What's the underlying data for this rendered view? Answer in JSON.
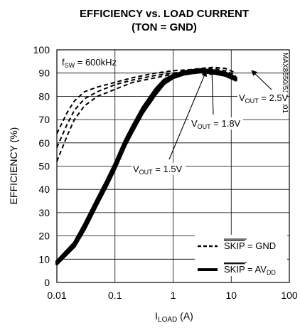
{
  "chart_data": {
    "type": "line",
    "title": "EFFICIENCY vs. LOAD CURRENT",
    "subtitle": "(TON = GND)",
    "xlabel_main": "I",
    "xlabel_sub": "LOAD",
    "xlabel_unit": " (A)",
    "ylabel": "EFFICIENCY (%)",
    "xscale": "log",
    "xlim": [
      0.01,
      100
    ],
    "ylim": [
      0,
      100
    ],
    "xticks": [
      0.01,
      0.1,
      1,
      10,
      100
    ],
    "xtick_labels": [
      "0.01",
      "0.1",
      "1",
      "10",
      "100"
    ],
    "yticks": [
      0,
      10,
      20,
      30,
      40,
      50,
      60,
      70,
      80,
      90,
      100
    ],
    "ytick_labels": [
      "0",
      "10",
      "20",
      "30",
      "40",
      "50",
      "60",
      "70",
      "80",
      "90",
      "100"
    ],
    "grid": true,
    "fsw_label_main": "f",
    "fsw_label_sub": "SW",
    "fsw_label_value": " = 600kHz",
    "figure_id": "MAX8550/51 toc01",
    "annotations": {
      "vout_25": {
        "pre": "V",
        "sub": "OUT",
        "post": " = 2.5V"
      },
      "vout_18": {
        "pre": "V",
        "sub": "OUT",
        "post": " = 1.8V"
      },
      "vout_15": {
        "pre": "V",
        "sub": "OUT",
        "post": " = 1.5V"
      }
    },
    "legend": {
      "placement": "bottom-right",
      "dashed": {
        "overline": "SKIP",
        "rest": " = GND"
      },
      "solid": {
        "overline": "SKIP",
        "rest": " = AV",
        "sub": "DD"
      }
    },
    "series": [
      {
        "style": "dashed",
        "x": [
          0.01,
          0.015,
          0.02,
          0.03,
          0.05,
          0.1,
          0.2,
          0.5,
          1,
          2,
          3,
          5,
          8,
          12
        ],
        "y": [
          64,
          73,
          78,
          82,
          84,
          86,
          88,
          90,
          91,
          91.5,
          92,
          92.5,
          92,
          90
        ]
      },
      {
        "style": "dashed",
        "x": [
          0.01,
          0.015,
          0.02,
          0.03,
          0.05,
          0.1,
          0.2,
          0.5,
          1,
          2,
          3,
          5,
          8,
          12
        ],
        "y": [
          58,
          68,
          74,
          79,
          82,
          85,
          87,
          89,
          90,
          91,
          91.5,
          92,
          91,
          89
        ]
      },
      {
        "style": "dashed",
        "x": [
          0.01,
          0.015,
          0.02,
          0.03,
          0.05,
          0.1,
          0.2,
          0.5,
          1,
          2,
          3,
          5,
          8,
          12
        ],
        "y": [
          52,
          63,
          70,
          76,
          80,
          83,
          86,
          88,
          89.5,
          90.5,
          91,
          91,
          90,
          88
        ]
      },
      {
        "style": "solid",
        "x": [
          0.01,
          0.02,
          0.03,
          0.05,
          0.07,
          0.1,
          0.15,
          0.2,
          0.3,
          0.5,
          0.7,
          1,
          1.5,
          2,
          3,
          5,
          8,
          12
        ],
        "y": [
          9,
          17,
          25,
          36,
          43,
          51,
          61,
          67,
          75,
          83,
          87,
          89,
          90.5,
          91,
          91.5,
          91,
          90,
          88
        ]
      },
      {
        "style": "solid",
        "x": [
          0.01,
          0.02,
          0.03,
          0.05,
          0.07,
          0.1,
          0.15,
          0.2,
          0.3,
          0.5,
          0.7,
          1,
          1.5,
          2,
          3,
          5,
          8,
          12
        ],
        "y": [
          8.5,
          16,
          24,
          35,
          42,
          50,
          60,
          66,
          74,
          82,
          86,
          88.5,
          90,
          90.5,
          91,
          90.5,
          89.5,
          87.5
        ]
      },
      {
        "style": "solid",
        "x": [
          0.01,
          0.02,
          0.03,
          0.05,
          0.07,
          0.1,
          0.15,
          0.2,
          0.3,
          0.5,
          0.7,
          1,
          1.5,
          2,
          3,
          5,
          8,
          12
        ],
        "y": [
          8,
          15.5,
          23,
          34,
          41,
          49,
          59,
          65,
          73,
          81,
          85.5,
          88,
          89.5,
          90,
          90.5,
          90,
          89,
          87
        ]
      }
    ]
  }
}
